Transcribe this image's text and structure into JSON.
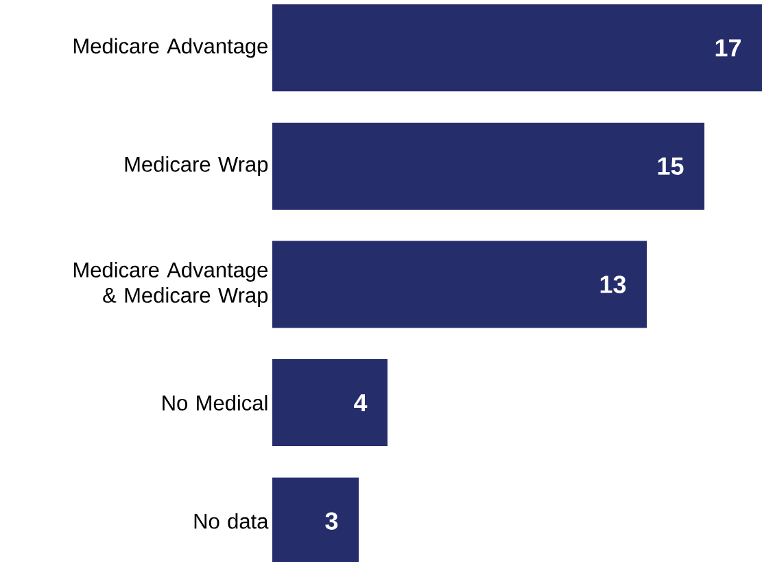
{
  "chart_data": {
    "type": "bar",
    "orientation": "horizontal",
    "categories": [
      "Medicare Advantage",
      "Medicare Wrap",
      "Medicare Advantage & Medicare Wrap",
      "No Medical",
      "No data"
    ],
    "values": [
      17,
      15,
      13,
      4,
      3
    ],
    "color": "#262d6b",
    "data_labels": true
  }
}
